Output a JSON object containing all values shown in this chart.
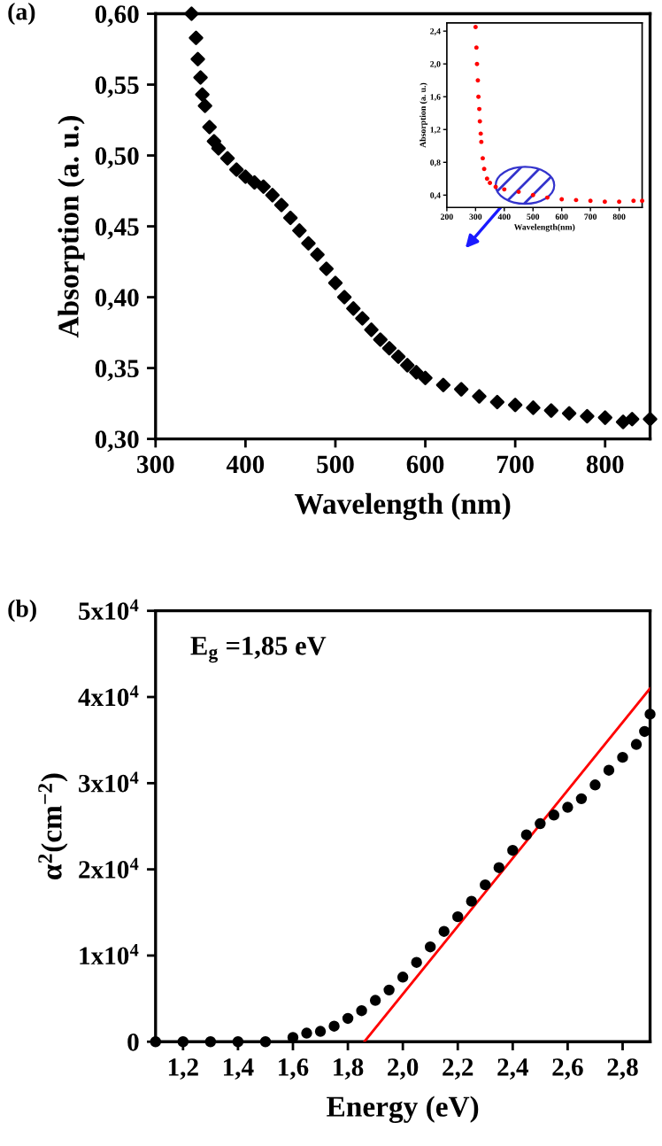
{
  "chart_data": [
    {
      "type": "scatter",
      "xlabel": "Wavelength (nm)",
      "ylabel": "Absorption (a. u.)",
      "annotations": [
        "(a)"
      ],
      "marker": "diamond",
      "xlim": [
        300,
        850
      ],
      "xticks": [
        300,
        400,
        500,
        600,
        700,
        800
      ],
      "ylim": [
        0.3,
        0.6
      ],
      "yticks": [
        {
          "value": 0.3,
          "label": "0,30"
        },
        {
          "value": 0.35,
          "label": "0,35"
        },
        {
          "value": 0.4,
          "label": "0,40"
        },
        {
          "value": 0.45,
          "label": "0,45"
        },
        {
          "value": 0.5,
          "label": "0,50"
        },
        {
          "value": 0.55,
          "label": "0,55"
        },
        {
          "value": 0.6,
          "label": "0,60"
        }
      ],
      "series": [
        {
          "color": "#000000",
          "x": [
            340,
            345,
            347,
            350,
            352,
            355,
            360,
            365,
            370,
            380,
            390,
            400,
            410,
            420,
            430,
            440,
            450,
            460,
            470,
            480,
            490,
            500,
            510,
            520,
            530,
            540,
            550,
            560,
            570,
            580,
            590,
            600,
            620,
            640,
            660,
            680,
            700,
            720,
            740,
            760,
            780,
            800,
            820,
            830,
            850
          ],
          "values": [
            0.6,
            0.583,
            0.568,
            0.555,
            0.543,
            0.535,
            0.52,
            0.51,
            0.505,
            0.498,
            0.49,
            0.485,
            0.481,
            0.478,
            0.472,
            0.465,
            0.456,
            0.447,
            0.438,
            0.43,
            0.42,
            0.41,
            0.4,
            0.392,
            0.385,
            0.377,
            0.37,
            0.364,
            0.358,
            0.352,
            0.347,
            0.343,
            0.338,
            0.335,
            0.33,
            0.326,
            0.324,
            0.322,
            0.32,
            0.318,
            0.316,
            0.315,
            0.312,
            0.314,
            0.314
          ]
        }
      ]
    },
    {
      "type": "scatter",
      "xlabel": "Wavelength(nm)",
      "ylabel": "Absorption (a. u.)",
      "marker": "circle",
      "xlim": [
        200,
        880
      ],
      "xticks": [
        200,
        300,
        400,
        500,
        600,
        700,
        800
      ],
      "ylim": [
        0.25,
        2.5
      ],
      "yticks": [
        {
          "value": 0.4,
          "label": "0,4"
        },
        {
          "value": 0.8,
          "label": "0,8"
        },
        {
          "value": 1.2,
          "label": "1,2"
        },
        {
          "value": 1.6,
          "label": "1,6"
        },
        {
          "value": 2.0,
          "label": "2,0"
        },
        {
          "value": 2.4,
          "label": "2,4"
        }
      ],
      "series": [
        {
          "color": "#ff0000",
          "x": [
            300,
            303,
            305,
            308,
            310,
            313,
            315,
            318,
            320,
            325,
            330,
            340,
            350,
            370,
            400,
            450,
            500,
            550,
            600,
            650,
            700,
            750,
            800,
            850,
            880
          ],
          "values": [
            2.45,
            2.2,
            2.0,
            1.8,
            1.6,
            1.45,
            1.3,
            1.15,
            1.05,
            0.85,
            0.72,
            0.6,
            0.55,
            0.5,
            0.47,
            0.44,
            0.4,
            0.37,
            0.35,
            0.34,
            0.33,
            0.32,
            0.32,
            0.33,
            0.33
          ]
        }
      ]
    },
    {
      "type": "scatter",
      "xlabel": "Energy (eV)",
      "ylabel": "α$^{2}$(cm$^{−2}$)",
      "annotations": [
        "(b)",
        "E$_{g}$ =1,85 eV"
      ],
      "marker": "circle",
      "xlim": [
        1.1,
        2.9
      ],
      "xticks": [
        {
          "value": 1.2,
          "label": "1,2"
        },
        {
          "value": 1.4,
          "label": "1,4"
        },
        {
          "value": 1.6,
          "label": "1,6"
        },
        {
          "value": 1.8,
          "label": "1,8"
        },
        {
          "value": 2.0,
          "label": "2,0"
        },
        {
          "value": 2.2,
          "label": "2,2"
        },
        {
          "value": 2.4,
          "label": "2,4"
        },
        {
          "value": 2.6,
          "label": "2,6"
        },
        {
          "value": 2.8,
          "label": "2,8"
        }
      ],
      "ylim": [
        0,
        50000
      ],
      "yticks": [
        0,
        {
          "value": 10000,
          "label": "1x10$^{4}$"
        },
        {
          "value": 20000,
          "label": "2x10$^{4}$"
        },
        {
          "value": 30000,
          "label": "3x10$^{4}$"
        },
        {
          "value": 40000,
          "label": "4x10$^{4}$"
        },
        {
          "value": 50000,
          "label": "5x10$^{4}$"
        }
      ],
      "series": [
        {
          "color": "#000000",
          "x": [
            1.1,
            1.2,
            1.3,
            1.4,
            1.5,
            1.6,
            1.65,
            1.7,
            1.75,
            1.8,
            1.85,
            1.9,
            1.95,
            2.0,
            2.05,
            2.1,
            2.15,
            2.2,
            2.25,
            2.3,
            2.35,
            2.4,
            2.45,
            2.5,
            2.55,
            2.6,
            2.65,
            2.7,
            2.75,
            2.8,
            2.85,
            2.88,
            2.9
          ],
          "values": [
            0,
            0,
            0,
            0,
            0,
            500,
            1000,
            1200,
            1800,
            2700,
            3600,
            4800,
            6000,
            7500,
            9200,
            11000,
            12800,
            14500,
            16300,
            18200,
            20200,
            22200,
            24000,
            25300,
            26300,
            27200,
            28200,
            29800,
            31500,
            33000,
            34500,
            36000,
            38000
          ]
        },
        {
          "type": "line",
          "marker": "none",
          "color": "#ff0000",
          "x": [
            1.86,
            2.9
          ],
          "values": [
            0,
            41000
          ]
        }
      ]
    }
  ]
}
